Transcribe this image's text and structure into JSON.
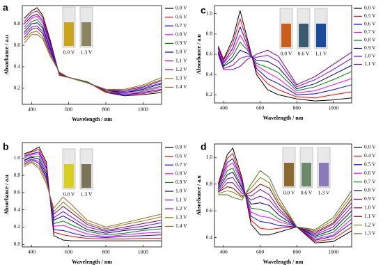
{
  "chart_data": [
    {
      "type": "line",
      "label": "a",
      "x_label": "Wavelength / nm",
      "y_label": "Absorbance / a.u",
      "x": [
        360,
        400,
        430,
        460,
        500,
        550,
        600,
        700,
        800,
        900,
        1000,
        1100
      ],
      "xlim": [
        350,
        1100
      ],
      "ylim": [
        0.05,
        0.97
      ],
      "xticks": [
        400,
        600,
        800,
        1000
      ],
      "yticks": [
        0.2,
        0.4,
        0.6,
        0.8
      ],
      "inset_labels": [
        "0.0 V",
        "1.3 V"
      ],
      "inset_colors": [
        "#c9a41c",
        "#8a8560"
      ],
      "series": [
        {
          "name": "0.0 V",
          "color": "#000000",
          "values": [
            0.85,
            0.92,
            0.95,
            0.88,
            0.65,
            0.32,
            0.3,
            0.26,
            0.16,
            0.13,
            0.14,
            0.16
          ]
        },
        {
          "name": "0.6 V",
          "color": "#ff0000",
          "values": [
            0.82,
            0.9,
            0.92,
            0.86,
            0.63,
            0.32,
            0.3,
            0.26,
            0.16,
            0.14,
            0.15,
            0.18
          ]
        },
        {
          "name": "0.7 V",
          "color": "#0000ff",
          "values": [
            0.8,
            0.87,
            0.89,
            0.83,
            0.62,
            0.33,
            0.3,
            0.26,
            0.17,
            0.14,
            0.16,
            0.19
          ]
        },
        {
          "name": "0.8 V",
          "color": "#ff00ff",
          "values": [
            0.77,
            0.85,
            0.87,
            0.81,
            0.6,
            0.33,
            0.3,
            0.26,
            0.17,
            0.15,
            0.17,
            0.21
          ]
        },
        {
          "name": "0.9 V",
          "color": "#008000",
          "values": [
            0.75,
            0.82,
            0.84,
            0.78,
            0.58,
            0.33,
            0.3,
            0.26,
            0.17,
            0.16,
            0.18,
            0.22
          ]
        },
        {
          "name": "1.0 V",
          "color": "#000080",
          "values": [
            0.72,
            0.8,
            0.81,
            0.76,
            0.57,
            0.34,
            0.3,
            0.25,
            0.18,
            0.16,
            0.19,
            0.24
          ]
        },
        {
          "name": "1.1 V",
          "color": "#8000ff",
          "values": [
            0.7,
            0.77,
            0.78,
            0.73,
            0.55,
            0.34,
            0.3,
            0.25,
            0.18,
            0.17,
            0.2,
            0.25
          ]
        },
        {
          "name": "1.2 V",
          "color": "#800080",
          "values": [
            0.67,
            0.75,
            0.76,
            0.71,
            0.53,
            0.34,
            0.3,
            0.25,
            0.18,
            0.18,
            0.21,
            0.27
          ]
        },
        {
          "name": "1.3 V",
          "color": "#808000",
          "values": [
            0.65,
            0.72,
            0.73,
            0.68,
            0.52,
            0.35,
            0.3,
            0.25,
            0.19,
            0.18,
            0.22,
            0.28
          ]
        },
        {
          "name": "1.4 V",
          "color": "#996633",
          "values": [
            0.62,
            0.7,
            0.7,
            0.66,
            0.5,
            0.35,
            0.3,
            0.25,
            0.19,
            0.19,
            0.23,
            0.3
          ]
        }
      ]
    },
    {
      "type": "line",
      "label": "b",
      "x_label": "Wavelength / nm",
      "y_label": "Absorbance / a.u",
      "x": [
        360,
        400,
        440,
        480,
        520,
        570,
        620,
        700,
        800,
        900,
        1000,
        1100
      ],
      "xlim": [
        350,
        1100
      ],
      "ylim": [
        -0.03,
        1.18
      ],
      "xticks": [
        400,
        600,
        800,
        1000
      ],
      "yticks": [
        {
          "value": 0,
          "label": "0.0"
        },
        0.2,
        0.4,
        0.6,
        0.8,
        {
          "value": 1,
          "label": "1.0"
        }
      ],
      "inset_labels": [
        "0.0 V",
        "1.3 V"
      ],
      "inset_colors": [
        "#d8d020",
        "#7a7458"
      ],
      "series": [
        {
          "name": "0.0 V",
          "color": "#000000",
          "values": [
            1.05,
            1.08,
            1.13,
            0.95,
            0.1,
            0.05,
            0.04,
            0.04,
            0.04,
            0.04,
            0.04,
            0.04
          ]
        },
        {
          "name": "0.6 V",
          "color": "#ff0000",
          "values": [
            1.03,
            1.07,
            1.1,
            0.92,
            0.14,
            0.11,
            0.09,
            0.07,
            0.06,
            0.06,
            0.07,
            0.07
          ]
        },
        {
          "name": "0.7 V",
          "color": "#0000ff",
          "values": [
            1.02,
            1.05,
            1.07,
            0.89,
            0.17,
            0.16,
            0.13,
            0.09,
            0.08,
            0.09,
            0.1,
            0.11
          ]
        },
        {
          "name": "0.8 V",
          "color": "#ff00ff",
          "values": [
            1.0,
            1.04,
            1.05,
            0.87,
            0.21,
            0.22,
            0.18,
            0.12,
            0.09,
            0.11,
            0.13,
            0.14
          ]
        },
        {
          "name": "0.9 V",
          "color": "#008000",
          "values": [
            0.98,
            1.02,
            1.02,
            0.84,
            0.24,
            0.27,
            0.22,
            0.15,
            0.11,
            0.13,
            0.16,
            0.18
          ]
        },
        {
          "name": "1.0 V",
          "color": "#000080",
          "values": [
            0.97,
            1.01,
            0.99,
            0.81,
            0.28,
            0.33,
            0.27,
            0.17,
            0.13,
            0.16,
            0.18,
            0.21
          ]
        },
        {
          "name": "1.1 V",
          "color": "#8000ff",
          "values": [
            0.95,
            0.99,
            0.96,
            0.78,
            0.31,
            0.38,
            0.31,
            0.2,
            0.15,
            0.18,
            0.21,
            0.25
          ]
        },
        {
          "name": "1.2 V",
          "color": "#800080",
          "values": [
            0.93,
            0.98,
            0.94,
            0.76,
            0.35,
            0.44,
            0.36,
            0.23,
            0.16,
            0.2,
            0.24,
            0.28
          ]
        },
        {
          "name": "1.3 V",
          "color": "#808000",
          "values": [
            0.92,
            0.96,
            0.91,
            0.73,
            0.38,
            0.49,
            0.4,
            0.25,
            0.18,
            0.23,
            0.27,
            0.32
          ]
        },
        {
          "name": "1.4 V",
          "color": "#996633",
          "values": [
            0.9,
            0.95,
            0.88,
            0.7,
            0.42,
            0.55,
            0.45,
            0.28,
            0.2,
            0.25,
            0.3,
            0.35
          ]
        }
      ]
    },
    {
      "type": "line",
      "label": "c",
      "x_label": "Wavelength / nm",
      "y_label": "Absorbance / a.u",
      "x": [
        370,
        400,
        450,
        490,
        530,
        580,
        640,
        700,
        800,
        900,
        1000,
        1100
      ],
      "xlim": [
        350,
        1100
      ],
      "ylim": [
        0.12,
        1.08
      ],
      "xticks": [
        400,
        600,
        800,
        1000
      ],
      "yticks": [
        0.2,
        0.4,
        0.6,
        0.8,
        {
          "value": 1,
          "label": "1.0"
        }
      ],
      "inset_labels": [
        "0.0 V",
        "0.6 V",
        "1.1 V"
      ],
      "inset_colors": [
        "#c8601c",
        "#3a5a70",
        "#1a4a9a"
      ],
      "series": [
        {
          "name": "0.0 V",
          "color": "#000000",
          "values": [
            0.68,
            0.55,
            0.75,
            1.03,
            0.75,
            0.4,
            0.25,
            0.2,
            0.16,
            0.14,
            0.15,
            0.17
          ]
        },
        {
          "name": "0.5 V",
          "color": "#ff0000",
          "values": [
            0.67,
            0.54,
            0.71,
            0.95,
            0.72,
            0.43,
            0.31,
            0.25,
            0.18,
            0.17,
            0.2,
            0.23
          ]
        },
        {
          "name": "0.6 V",
          "color": "#0000ff",
          "values": [
            0.66,
            0.52,
            0.66,
            0.87,
            0.69,
            0.46,
            0.36,
            0.31,
            0.2,
            0.21,
            0.25,
            0.3
          ]
        },
        {
          "name": "0.7 V",
          "color": "#ff00ff",
          "values": [
            0.65,
            0.51,
            0.62,
            0.79,
            0.66,
            0.49,
            0.42,
            0.36,
            0.22,
            0.24,
            0.3,
            0.36
          ]
        },
        {
          "name": "0.8 V",
          "color": "#008000",
          "values": [
            0.63,
            0.49,
            0.58,
            0.72,
            0.64,
            0.51,
            0.47,
            0.42,
            0.24,
            0.28,
            0.35,
            0.43
          ]
        },
        {
          "name": "0.9 V",
          "color": "#000080",
          "values": [
            0.62,
            0.48,
            0.54,
            0.64,
            0.61,
            0.54,
            0.53,
            0.47,
            0.26,
            0.31,
            0.4,
            0.49
          ]
        },
        {
          "name": "1.0 V",
          "color": "#8000ff",
          "values": [
            0.61,
            0.46,
            0.49,
            0.56,
            0.58,
            0.57,
            0.59,
            0.53,
            0.28,
            0.35,
            0.45,
            0.56
          ]
        },
        {
          "name": "1.1 V",
          "color": "#800080",
          "values": [
            0.6,
            0.45,
            0.45,
            0.48,
            0.55,
            0.6,
            0.64,
            0.58,
            0.3,
            0.38,
            0.5,
            0.62
          ]
        }
      ]
    },
    {
      "type": "line",
      "label": "d",
      "x_label": "Wavelength / nm",
      "y_label": "Absorbance / a.u",
      "x": [
        370,
        420,
        450,
        500,
        550,
        600,
        650,
        700,
        800,
        900,
        1000,
        1100
      ],
      "xlim": [
        350,
        1100
      ],
      "ylim": [
        0.33,
        1.1
      ],
      "xticks": [
        400,
        600,
        800,
        1000
      ],
      "yticks": [
        0.4,
        0.6,
        0.8,
        {
          "value": 1,
          "label": "1.0"
        }
      ],
      "inset_labels": [
        "0.0 V",
        "0.6 V",
        "1.3 V"
      ],
      "inset_colors": [
        "#8a6a30",
        "#6a8a6a",
        "#8a7ab8"
      ],
      "series": [
        {
          "name": "0.0 V",
          "color": "#000000",
          "values": [
            0.8,
            1.02,
            1.07,
            0.85,
            0.5,
            0.42,
            0.42,
            0.44,
            0.48,
            0.36,
            0.37,
            0.45
          ]
        },
        {
          "name": "0.4 V",
          "color": "#ff0000",
          "values": [
            0.79,
            0.99,
            1.03,
            0.83,
            0.53,
            0.47,
            0.46,
            0.47,
            0.48,
            0.37,
            0.39,
            0.48
          ]
        },
        {
          "name": "0.5 V",
          "color": "#0000ff",
          "values": [
            0.78,
            0.96,
            0.99,
            0.82,
            0.56,
            0.52,
            0.51,
            0.49,
            0.48,
            0.38,
            0.41,
            0.51
          ]
        },
        {
          "name": "0.6 V",
          "color": "#ff00ff",
          "values": [
            0.78,
            0.93,
            0.96,
            0.8,
            0.59,
            0.56,
            0.55,
            0.52,
            0.48,
            0.39,
            0.42,
            0.54
          ]
        },
        {
          "name": "0.7 V",
          "color": "#008000",
          "values": [
            0.77,
            0.9,
            0.92,
            0.78,
            0.62,
            0.61,
            0.59,
            0.54,
            0.48,
            0.4,
            0.44,
            0.57
          ]
        },
        {
          "name": "0.8 V",
          "color": "#000080",
          "values": [
            0.76,
            0.87,
            0.89,
            0.77,
            0.65,
            0.66,
            0.64,
            0.57,
            0.48,
            0.41,
            0.46,
            0.6
          ]
        },
        {
          "name": "0.9 V",
          "color": "#8000ff",
          "values": [
            0.75,
            0.84,
            0.85,
            0.75,
            0.68,
            0.71,
            0.68,
            0.6,
            0.48,
            0.42,
            0.48,
            0.63
          ]
        },
        {
          "name": "1.0 V",
          "color": "#800080",
          "values": [
            0.74,
            0.81,
            0.81,
            0.73,
            0.71,
            0.76,
            0.72,
            0.62,
            0.48,
            0.43,
            0.5,
            0.66
          ]
        },
        {
          "name": "1.1 V",
          "color": "#800000",
          "values": [
            0.74,
            0.78,
            0.77,
            0.71,
            0.74,
            0.8,
            0.77,
            0.65,
            0.48,
            0.44,
            0.51,
            0.69
          ]
        },
        {
          "name": "1.2 V",
          "color": "#808000",
          "values": [
            0.73,
            0.75,
            0.74,
            0.7,
            0.77,
            0.85,
            0.81,
            0.67,
            0.48,
            0.45,
            0.53,
            0.72
          ]
        },
        {
          "name": "1.3 V",
          "color": "#556b2f",
          "values": [
            0.72,
            0.72,
            0.7,
            0.68,
            0.8,
            0.9,
            0.85,
            0.7,
            0.48,
            0.46,
            0.55,
            0.75
          ]
        }
      ]
    }
  ]
}
